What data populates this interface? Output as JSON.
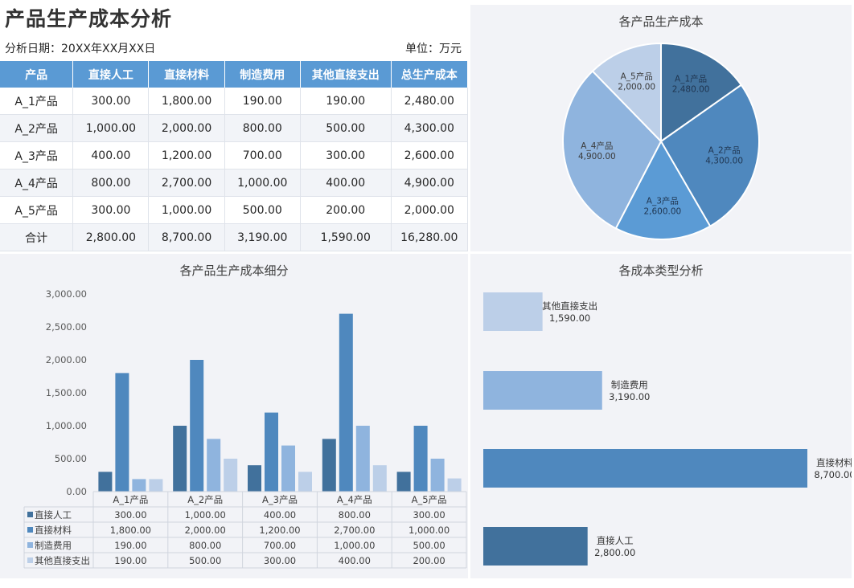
{
  "header": {
    "title": "产品生产成本分析",
    "date_label": "分析日期：20XX年XX月XX日",
    "unit_label": "单位：万元"
  },
  "table": {
    "columns": [
      "产品",
      "直接人工",
      "直接材料",
      "制造费用",
      "其他直接支出",
      "总生产成本"
    ],
    "rows": [
      [
        "A_1产品",
        "300.00",
        "1,800.00",
        "190.00",
        "190.00",
        "2,480.00"
      ],
      [
        "A_2产品",
        "1,000.00",
        "2,000.00",
        "800.00",
        "500.00",
        "4,300.00"
      ],
      [
        "A_3产品",
        "400.00",
        "1,200.00",
        "700.00",
        "300.00",
        "2,600.00"
      ],
      [
        "A_4产品",
        "800.00",
        "2,700.00",
        "1,000.00",
        "400.00",
        "4,900.00"
      ],
      [
        "A_5产品",
        "300.00",
        "1,000.00",
        "500.00",
        "200.00",
        "2,000.00"
      ],
      [
        "合计",
        "2,800.00",
        "8,700.00",
        "3,190.00",
        "1,590.00",
        "16,280.00"
      ]
    ]
  },
  "colors": {
    "c1": "#41719c",
    "c2": "#4f88be",
    "c3": "#5b9bd5",
    "c4": "#8fb4de",
    "c5": "#bccfe8",
    "header": "#5a9ad4"
  },
  "chart_data": [
    {
      "type": "pie",
      "title": "各产品生产成本",
      "categories": [
        "A_1产品",
        "A_2产品",
        "A_3产品",
        "A_4产品",
        "A_5产品"
      ],
      "values": [
        2480,
        4300,
        2600,
        4900,
        2000
      ],
      "value_labels": [
        "2,480.00",
        "4,300.00",
        "2,600.00",
        "4,900.00",
        "2,000.00"
      ],
      "colors": [
        "#41719c",
        "#4f88be",
        "#5b9bd5",
        "#8fb4de",
        "#bccfe8"
      ]
    },
    {
      "type": "bar",
      "title": "各产品生产成本细分",
      "categories": [
        "A_1产品",
        "A_2产品",
        "A_3产品",
        "A_4产品",
        "A_5产品"
      ],
      "ylim": [
        0,
        3000
      ],
      "yticks": [
        "0.00",
        "500.00",
        "1,000.00",
        "1,500.00",
        "2,000.00",
        "2,500.00",
        "3,000.00"
      ],
      "series": [
        {
          "name": "直接人工",
          "values": [
            300,
            1000,
            400,
            800,
            300
          ],
          "labels": [
            "300.00",
            "1,000.00",
            "400.00",
            "800.00",
            "300.00"
          ],
          "color": "#41719c"
        },
        {
          "name": "直接材料",
          "values": [
            1800,
            2000,
            1200,
            2700,
            1000
          ],
          "labels": [
            "1,800.00",
            "2,000.00",
            "1,200.00",
            "2,700.00",
            "1,000.00"
          ],
          "color": "#4f88be"
        },
        {
          "name": "制造费用",
          "values": [
            190,
            800,
            700,
            1000,
            500
          ],
          "labels": [
            "190.00",
            "800.00",
            "700.00",
            "1,000.00",
            "500.00"
          ],
          "color": "#8fb4de"
        },
        {
          "name": "其他直接支出",
          "values": [
            190,
            500,
            300,
            400,
            200
          ],
          "labels": [
            "190.00",
            "500.00",
            "300.00",
            "400.00",
            "200.00"
          ],
          "color": "#bccfe8"
        }
      ]
    },
    {
      "type": "bar",
      "orientation": "horizontal",
      "title": "各成本类型分析",
      "categories": [
        "其他直接支出",
        "制造费用",
        "直接材料",
        "直接人工"
      ],
      "values": [
        1590,
        3190,
        8700,
        2800
      ],
      "value_labels": [
        "1,590.00",
        "3,190.00",
        "8,700.00",
        "2,800.00"
      ],
      "colors": [
        "#bccfe8",
        "#8fb4de",
        "#4f88be",
        "#41719c"
      ]
    }
  ]
}
